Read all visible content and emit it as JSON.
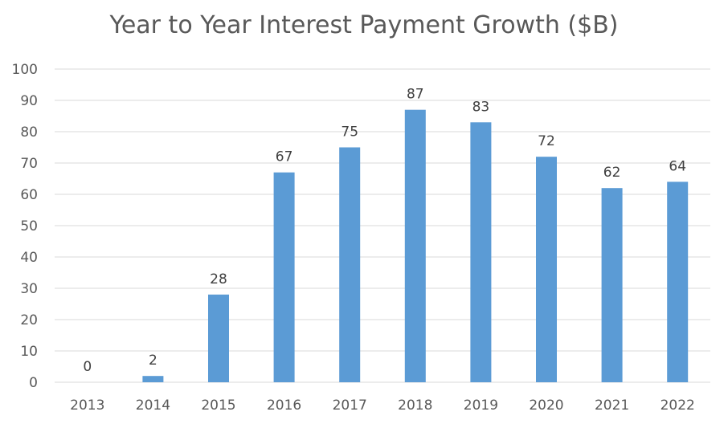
{
  "chart_data": {
    "type": "bar",
    "title": "Year to Year Interest Payment Growth ($B)",
    "xlabel": "",
    "ylabel": "",
    "categories": [
      "2013",
      "2014",
      "2015",
      "2016",
      "2017",
      "2018",
      "2019",
      "2020",
      "2021",
      "2022"
    ],
    "values": [
      0,
      2,
      28,
      67,
      75,
      87,
      83,
      72,
      62,
      64
    ],
    "data_labels": [
      "0",
      "2",
      "28",
      "67",
      "75",
      "87",
      "83",
      "72",
      "62",
      "64"
    ],
    "ylim": [
      0,
      100
    ],
    "yticks": [
      "0",
      "10",
      "20",
      "30",
      "40",
      "50",
      "60",
      "70",
      "80",
      "90",
      "100"
    ],
    "grid": true,
    "legend": "none",
    "bar_color": "#5B9BD5",
    "grid_color": "#D9D9D9"
  }
}
